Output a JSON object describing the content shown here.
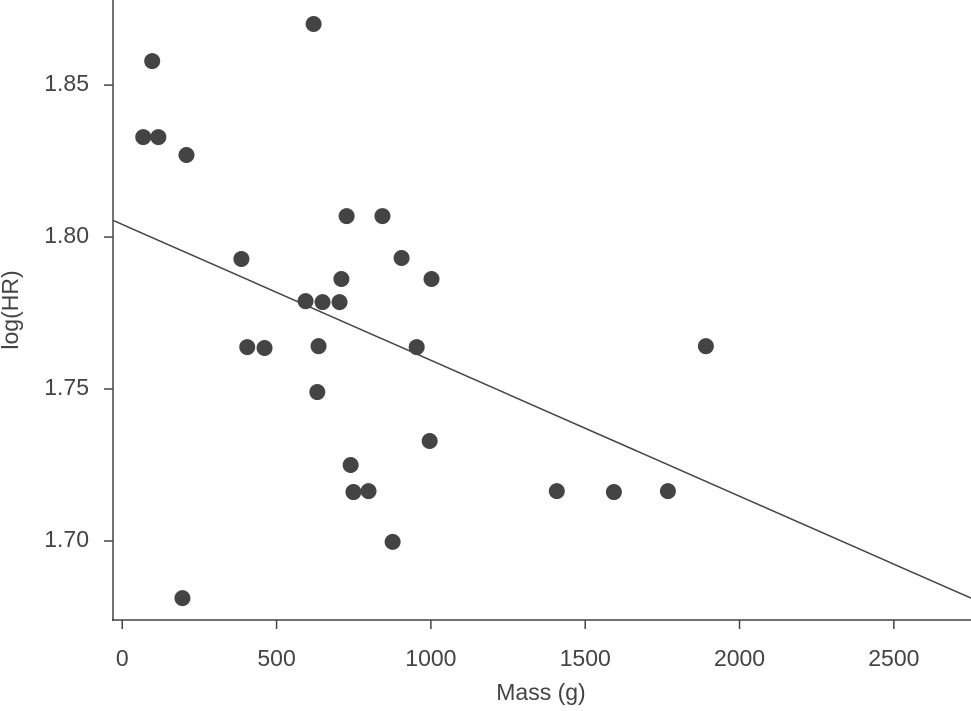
{
  "chart_data": {
    "type": "scatter",
    "x_label": "Mass (g)",
    "y_label": "log(HR)",
    "x": [
      68,
      97,
      117,
      208,
      195,
      386,
      405,
      461,
      594,
      620,
      632,
      636,
      649,
      704,
      710,
      727,
      740,
      749,
      798,
      843,
      876,
      905,
      954,
      996,
      1002,
      1408,
      1593,
      1768,
      1891
    ],
    "values": [
      1.8329,
      1.8579,
      1.8329,
      1.827,
      1.6812,
      1.7928,
      1.7638,
      1.7635,
      1.7789,
      1.8701,
      1.749,
      1.7641,
      1.7786,
      1.7786,
      1.7862,
      1.8069,
      1.725,
      1.7161,
      1.7164,
      1.8069,
      1.6997,
      1.7931,
      1.7638,
      1.7329,
      1.7862,
      1.7164,
      1.7161,
      1.7164,
      1.7641
    ],
    "color": "#444444",
    "fit_line": {
      "x": [
        -30,
        2750
      ],
      "y": [
        1.8055,
        1.6812
      ],
      "color": "#444444"
    },
    "xlim": [
      -30,
      2750
    ],
    "ylim": [
      1.674,
      1.878
    ],
    "xticks": [
      0,
      500,
      1000,
      1500,
      2000,
      2500
    ],
    "yticks": [
      {
        "value": 1.7,
        "label": "1.70"
      },
      1.75,
      {
        "value": 1.8,
        "label": "1.80"
      },
      1.85
    ],
    "grid": false
  }
}
